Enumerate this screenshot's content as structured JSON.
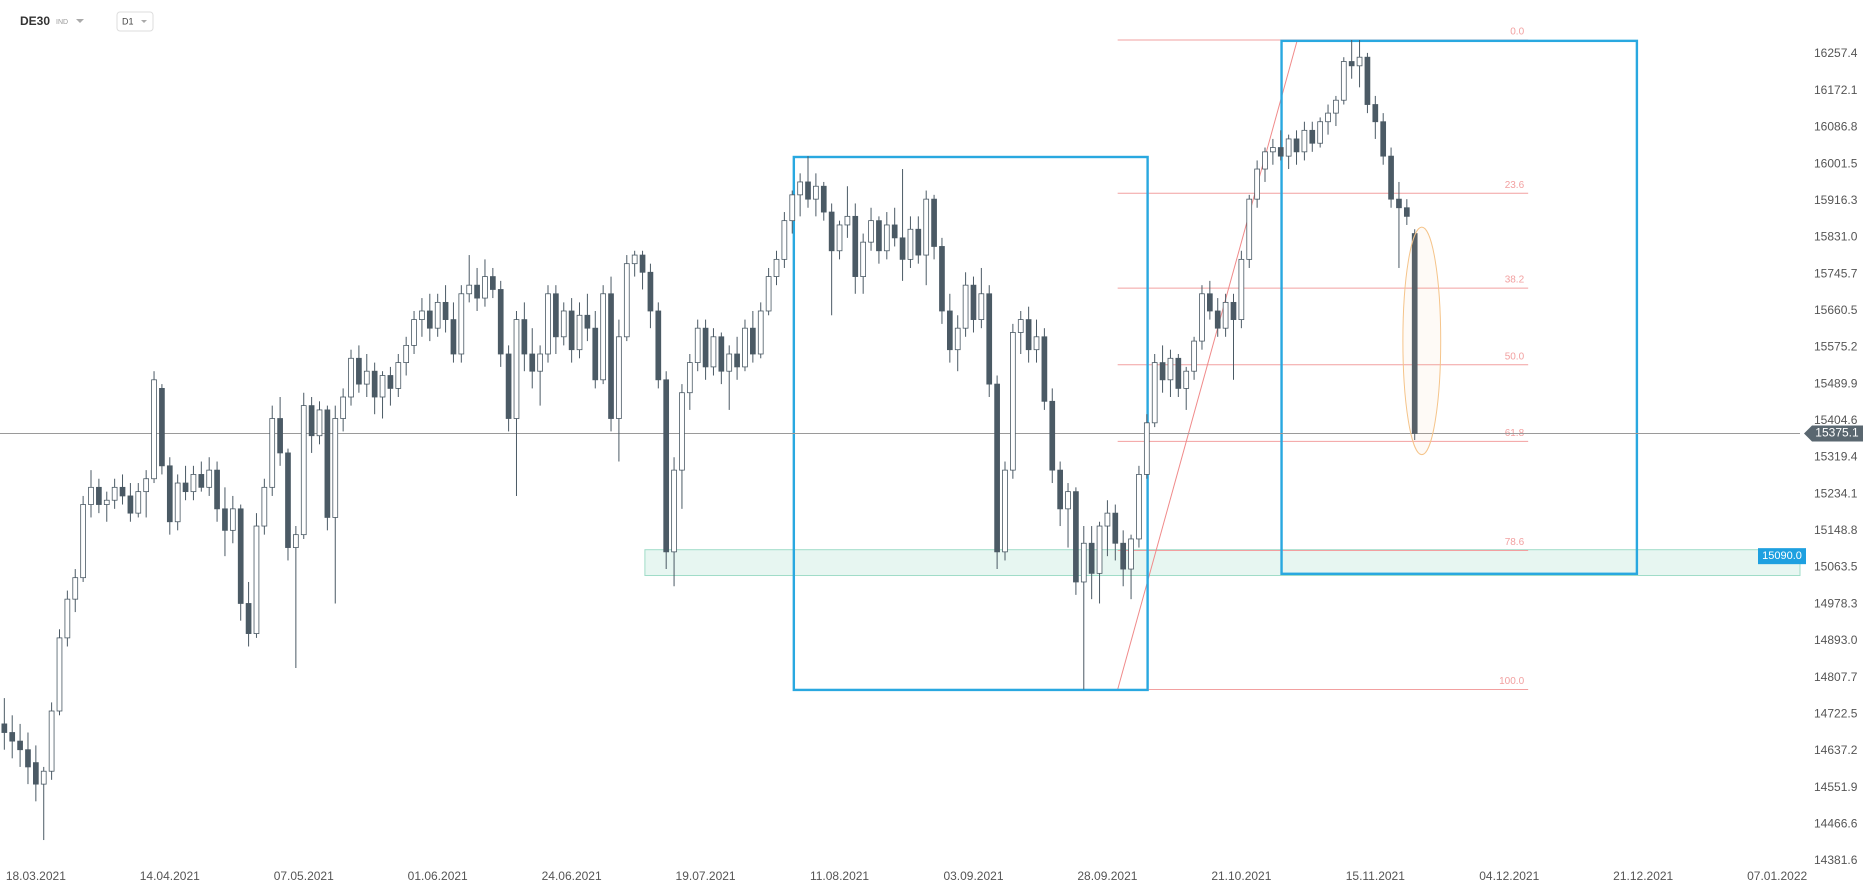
{
  "header": {
    "symbol": "DE30",
    "market": "IND",
    "interval": "D1"
  },
  "chart_data": {
    "type": "candlestick",
    "candles": [
      [
        14700,
        14760,
        14640,
        14680
      ],
      [
        14680,
        14720,
        14620,
        14660
      ],
      [
        14660,
        14700,
        14600,
        14640
      ],
      [
        14640,
        14680,
        14560,
        14600
      ],
      [
        14610,
        14650,
        14520,
        14560
      ],
      [
        14560,
        14600,
        14430,
        14590
      ],
      [
        14590,
        14750,
        14570,
        14730
      ],
      [
        14730,
        14920,
        14720,
        14900
      ],
      [
        14900,
        15010,
        14880,
        14990
      ],
      [
        14990,
        15060,
        14960,
        15040
      ],
      [
        15040,
        15230,
        15030,
        15210
      ],
      [
        15210,
        15290,
        15180,
        15250
      ],
      [
        15250,
        15270,
        15190,
        15210
      ],
      [
        15210,
        15240,
        15170,
        15220
      ],
      [
        15220,
        15270,
        15200,
        15250
      ],
      [
        15250,
        15280,
        15210,
        15230
      ],
      [
        15230,
        15260,
        15170,
        15190
      ],
      [
        15190,
        15260,
        15180,
        15240
      ],
      [
        15240,
        15290,
        15180,
        15270
      ],
      [
        15270,
        15520,
        15260,
        15500
      ],
      [
        15480,
        15490,
        15280,
        15300
      ],
      [
        15300,
        15320,
        15140,
        15170
      ],
      [
        15170,
        15280,
        15150,
        15260
      ],
      [
        15260,
        15300,
        15220,
        15240
      ],
      [
        15240,
        15300,
        15220,
        15280
      ],
      [
        15280,
        15310,
        15240,
        15250
      ],
      [
        15250,
        15320,
        15230,
        15290
      ],
      [
        15290,
        15310,
        15170,
        15200
      ],
      [
        15200,
        15250,
        15090,
        15150
      ],
      [
        15150,
        15230,
        15120,
        15200
      ],
      [
        15200,
        15210,
        14940,
        14980
      ],
      [
        14980,
        15030,
        14880,
        14910
      ],
      [
        14910,
        15190,
        14900,
        15160
      ],
      [
        15160,
        15270,
        15140,
        15250
      ],
      [
        15250,
        15440,
        15230,
        15410
      ],
      [
        15410,
        15460,
        15300,
        15330
      ],
      [
        15330,
        15340,
        15080,
        15110
      ],
      [
        15110,
        15160,
        14830,
        15140
      ],
      [
        15140,
        15470,
        15130,
        15440
      ],
      [
        15440,
        15460,
        15330,
        15370
      ],
      [
        15370,
        15450,
        15350,
        15430
      ],
      [
        15430,
        15440,
        15150,
        15180
      ],
      [
        15180,
        15440,
        14980,
        15410
      ],
      [
        15410,
        15480,
        15380,
        15460
      ],
      [
        15460,
        15570,
        15440,
        15550
      ],
      [
        15550,
        15580,
        15470,
        15490
      ],
      [
        15490,
        15560,
        15460,
        15520
      ],
      [
        15520,
        15540,
        15420,
        15460
      ],
      [
        15460,
        15520,
        15410,
        15510
      ],
      [
        15510,
        15530,
        15440,
        15480
      ],
      [
        15480,
        15560,
        15460,
        15540
      ],
      [
        15540,
        15600,
        15510,
        15580
      ],
      [
        15580,
        15660,
        15560,
        15640
      ],
      [
        15640,
        15690,
        15600,
        15660
      ],
      [
        15660,
        15700,
        15590,
        15620
      ],
      [
        15620,
        15700,
        15600,
        15680
      ],
      [
        15680,
        15720,
        15610,
        15640
      ],
      [
        15640,
        15680,
        15540,
        15560
      ],
      [
        15560,
        15720,
        15540,
        15700
      ],
      [
        15700,
        15790,
        15680,
        15720
      ],
      [
        15720,
        15760,
        15660,
        15690
      ],
      [
        15690,
        15780,
        15670,
        15740
      ],
      [
        15740,
        15760,
        15690,
        15710
      ],
      [
        15710,
        15730,
        15530,
        15560
      ],
      [
        15560,
        15580,
        15380,
        15410
      ],
      [
        15410,
        15660,
        15230,
        15640
      ],
      [
        15640,
        15680,
        15520,
        15560
      ],
      [
        15560,
        15620,
        15480,
        15520
      ],
      [
        15520,
        15580,
        15440,
        15560
      ],
      [
        15560,
        15720,
        15540,
        15700
      ],
      [
        15700,
        15720,
        15560,
        15600
      ],
      [
        15600,
        15680,
        15580,
        15660
      ],
      [
        15660,
        15690,
        15540,
        15570
      ],
      [
        15570,
        15680,
        15550,
        15650
      ],
      [
        15650,
        15700,
        15590,
        15620
      ],
      [
        15620,
        15660,
        15480,
        15500
      ],
      [
        15500,
        15720,
        15490,
        15700
      ],
      [
        15700,
        15740,
        15380,
        15410
      ],
      [
        15410,
        15640,
        15310,
        15600
      ],
      [
        15600,
        15790,
        15590,
        15770
      ],
      [
        15770,
        15800,
        15740,
        15790
      ],
      [
        15790,
        15800,
        15710,
        15750
      ],
      [
        15750,
        15770,
        15620,
        15660
      ],
      [
        15660,
        15680,
        15480,
        15500
      ],
      [
        15500,
        15520,
        15060,
        15100
      ],
      [
        15100,
        15320,
        15020,
        15290
      ],
      [
        15290,
        15490,
        15200,
        15470
      ],
      [
        15470,
        15560,
        15430,
        15540
      ],
      [
        15540,
        15640,
        15520,
        15620
      ],
      [
        15620,
        15640,
        15500,
        15530
      ],
      [
        15530,
        15620,
        15510,
        15600
      ],
      [
        15600,
        15610,
        15490,
        15520
      ],
      [
        15520,
        15580,
        15430,
        15560
      ],
      [
        15560,
        15600,
        15500,
        15530
      ],
      [
        15530,
        15640,
        15520,
        15620
      ],
      [
        15620,
        15660,
        15540,
        15560
      ],
      [
        15560,
        15680,
        15550,
        15660
      ],
      [
        15660,
        15760,
        15650,
        15740
      ],
      [
        15740,
        15800,
        15720,
        15780
      ],
      [
        15780,
        15890,
        15760,
        15870
      ],
      [
        15870,
        15940,
        15840,
        15930
      ],
      [
        15930,
        15980,
        15880,
        15960
      ],
      [
        15960,
        16020,
        15900,
        15920
      ],
      [
        15920,
        15980,
        15880,
        15950
      ],
      [
        15950,
        15960,
        15870,
        15890
      ],
      [
        15890,
        15910,
        15650,
        15800
      ],
      [
        15800,
        15870,
        15780,
        15860
      ],
      [
        15860,
        15950,
        15830,
        15880
      ],
      [
        15880,
        15910,
        15700,
        15740
      ],
      [
        15740,
        15840,
        15700,
        15820
      ],
      [
        15820,
        15900,
        15800,
        15870
      ],
      [
        15870,
        15880,
        15770,
        15800
      ],
      [
        15800,
        15890,
        15780,
        15860
      ],
      [
        15860,
        15900,
        15810,
        15830
      ],
      [
        15830,
        15990,
        15730,
        15780
      ],
      [
        15780,
        15880,
        15760,
        15850
      ],
      [
        15850,
        15880,
        15770,
        15790
      ],
      [
        15790,
        15940,
        15720,
        15920
      ],
      [
        15920,
        15930,
        15780,
        15810
      ],
      [
        15810,
        15830,
        15630,
        15660
      ],
      [
        15660,
        15700,
        15540,
        15570
      ],
      [
        15570,
        15650,
        15520,
        15620
      ],
      [
        15620,
        15750,
        15600,
        15720
      ],
      [
        15720,
        15740,
        15610,
        15640
      ],
      [
        15640,
        15760,
        15620,
        15700
      ],
      [
        15700,
        15720,
        15460,
        15490
      ],
      [
        15490,
        15510,
        15060,
        15100
      ],
      [
        15100,
        15310,
        15080,
        15290
      ],
      [
        15290,
        15630,
        15270,
        15610
      ],
      [
        15610,
        15660,
        15560,
        15640
      ],
      [
        15640,
        15670,
        15540,
        15570
      ],
      [
        15570,
        15640,
        15540,
        15600
      ],
      [
        15600,
        15620,
        15430,
        15450
      ],
      [
        15450,
        15480,
        15260,
        15290
      ],
      [
        15290,
        15310,
        15160,
        15200
      ],
      [
        15200,
        15260,
        15110,
        15240
      ],
      [
        15240,
        15250,
        15000,
        15030
      ],
      [
        15030,
        15160,
        14780,
        15120
      ],
      [
        15120,
        15160,
        14990,
        15050
      ],
      [
        15050,
        15170,
        14980,
        15160
      ],
      [
        15160,
        15220,
        15090,
        15190
      ],
      [
        15190,
        15210,
        15080,
        15120
      ],
      [
        15120,
        15150,
        15020,
        15060
      ],
      [
        15060,
        15140,
        14990,
        15130
      ],
      [
        15130,
        15300,
        15110,
        15280
      ],
      [
        15280,
        15420,
        15270,
        15400
      ],
      [
        15400,
        15560,
        15390,
        15540
      ],
      [
        15540,
        15580,
        15470,
        15500
      ],
      [
        15500,
        15570,
        15460,
        15550
      ],
      [
        15550,
        15560,
        15460,
        15480
      ],
      [
        15480,
        15530,
        15430,
        15520
      ],
      [
        15520,
        15600,
        15500,
        15590
      ],
      [
        15590,
        15720,
        15570,
        15700
      ],
      [
        15700,
        15730,
        15640,
        15660
      ],
      [
        15660,
        15690,
        15600,
        15620
      ],
      [
        15620,
        15700,
        15600,
        15680
      ],
      [
        15680,
        15700,
        15500,
        15640
      ],
      [
        15640,
        15800,
        15620,
        15780
      ],
      [
        15780,
        15930,
        15760,
        15920
      ],
      [
        15920,
        16010,
        15900,
        15990
      ],
      [
        15990,
        16040,
        15960,
        16030
      ],
      [
        16030,
        16060,
        16000,
        16040
      ],
      [
        16040,
        16080,
        16010,
        16020
      ],
      [
        16020,
        16070,
        15990,
        16060
      ],
      [
        16060,
        16080,
        16000,
        16030
      ],
      [
        16030,
        16100,
        16010,
        16080
      ],
      [
        16080,
        16100,
        16030,
        16050
      ],
      [
        16050,
        16110,
        16040,
        16100
      ],
      [
        16100,
        16140,
        16070,
        16120
      ],
      [
        16120,
        16160,
        16090,
        16150
      ],
      [
        16150,
        16250,
        16140,
        16240
      ],
      [
        16240,
        16290,
        16200,
        16230
      ],
      [
        16230,
        16290,
        16180,
        16250
      ],
      [
        16250,
        16260,
        16120,
        16140
      ],
      [
        16140,
        16160,
        16060,
        16100
      ],
      [
        16100,
        16120,
        16000,
        16020
      ],
      [
        16020,
        16040,
        15900,
        15920
      ],
      [
        15920,
        15960,
        15760,
        15900
      ],
      [
        15900,
        15920,
        15860,
        15880
      ],
      [
        15840,
        15850,
        15360,
        15375.1
      ]
    ],
    "up_color": "#ffffff",
    "down_color": "#4b5a65",
    "wick_color": "#4b5a65",
    "xlim": [
      -0.55,
      227.9
    ],
    "ylim": [
      14365,
      16383
    ],
    "xticks": [
      {
        "value": 4,
        "label": "18.03.2021"
      },
      {
        "value": 21,
        "label": "14.04.2021"
      },
      {
        "value": 38,
        "label": "07.05.2021"
      },
      {
        "value": 55,
        "label": "01.06.2021"
      },
      {
        "value": 72,
        "label": "24.06.2021"
      },
      {
        "value": 89,
        "label": "19.07.2021"
      },
      {
        "value": 106,
        "label": "11.08.2021"
      },
      {
        "value": 123,
        "label": "03.09.2021"
      },
      {
        "value": 140,
        "label": "28.09.2021"
      },
      {
        "value": 157,
        "label": "21.10.2021"
      },
      {
        "value": 174,
        "label": "15.11.2021"
      },
      {
        "value": 191,
        "label": "04.12.2021"
      },
      {
        "value": 208,
        "label": "21.12.2021"
      },
      {
        "value": 225,
        "label": "07.01.2022"
      }
    ],
    "yticks": [
      16257.4,
      16172.1,
      16086.8,
      16001.5,
      15916.3,
      {
        "value": 15831,
        "label": "15831.0"
      },
      15745.7,
      15660.5,
      15575.2,
      15489.9,
      15404.6,
      15319.4,
      15234.1,
      15148.8,
      15063.5,
      14978.3,
      {
        "value": 14893,
        "label": "14893.0"
      },
      14807.7,
      14722.5,
      14637.2,
      14551.9,
      14466.6,
      14381.6
    ],
    "grid": false,
    "last_price": 15375.1,
    "zone": {
      "x_from": 81.3,
      "top": 15105,
      "bottom": 15045,
      "level": {
        "value": 15090,
        "label": "15090.0"
      },
      "color": "#9fdcc8"
    },
    "boxes": {
      "color": "#29a8e0",
      "items": [
        {
          "x": [
            100.2,
            145.1
          ],
          "y": [
            14779,
            16018
          ]
        },
        {
          "x": [
            162.1,
            207.2
          ],
          "y": [
            15049,
            16288
          ]
        }
      ]
    },
    "fibonacci": {
      "x": [
        141.3,
        193.4
      ],
      "high": 16290,
      "low": 14780,
      "color": "#f2a0a0",
      "levels": [
        {
          "value": 0,
          "label": "0.0"
        },
        23.6,
        38.2,
        {
          "value": 50,
          "label": "50.0"
        },
        61.8,
        78.6,
        {
          "value": 100,
          "label": "100.0"
        }
      ]
    },
    "trend_line": {
      "x": [
        141.3,
        164.1
      ],
      "y": [
        14780,
        16290
      ],
      "color": "#f08a8a"
    },
    "ellipse": {
      "x": [
        177.5,
        182.3
      ],
      "y": [
        15326,
        15855
      ],
      "color": "#f5c48a"
    }
  }
}
